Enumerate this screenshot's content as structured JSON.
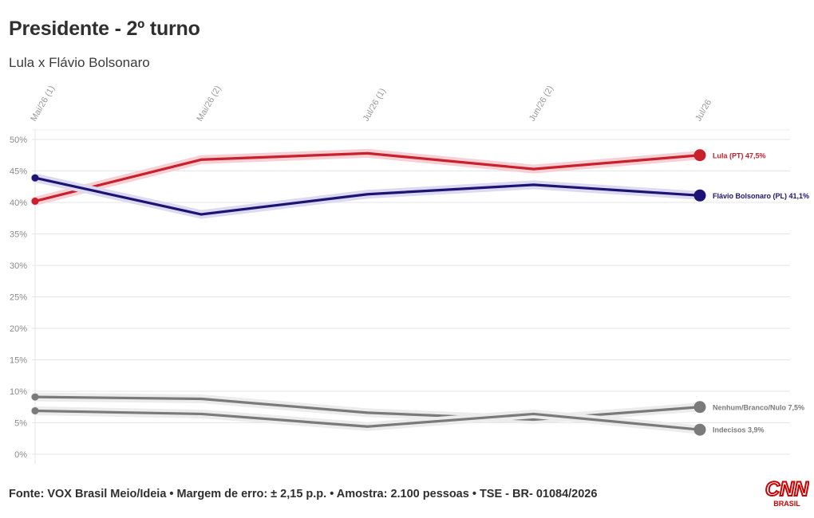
{
  "title": "Presidente - 2º turno",
  "subtitle": "Lula x Flávio Bolsonaro",
  "footer": "Fonte: VOX Brasil Meio/Ideia • Margem de erro: ± 2,15 p.p. • Amostra: 2.100 pessoas • TSE - BR- 01084/2026",
  "logo": {
    "top": "CNN",
    "bottom": "BRASIL",
    "color": "#cc0000"
  },
  "chart_data": {
    "type": "line",
    "x": [
      "Mai/26 (1)",
      "Mai/26 (2)",
      "Jul/26 (1)",
      "Jun/26 (2)",
      "Jul/26"
    ],
    "ylim": [
      0,
      50
    ],
    "yticks": [
      0,
      5,
      10,
      15,
      20,
      25,
      30,
      35,
      40,
      45,
      50
    ],
    "ytick_labels": [
      "0%",
      "5%",
      "10%",
      "15%",
      "20%",
      "25%",
      "30%",
      "35%",
      "40%",
      "45%",
      "50%"
    ],
    "grid": true,
    "series": [
      {
        "name": "Lula (PT)",
        "label": "Lula (PT) 47,5%",
        "color": "#c8202c",
        "halo": "#f6d0d4",
        "values": [
          40.2,
          46.8,
          47.8,
          45.3,
          47.5
        ]
      },
      {
        "name": "Flávio Bolsonaro (PL)",
        "label": "Flávio Bolsonaro (PL) 41,1%",
        "color": "#1c1472",
        "halo": "#dcdaf0",
        "values": [
          43.9,
          38.1,
          41.3,
          42.8,
          41.1
        ]
      },
      {
        "name": "Nenhum/Branco/Nulo",
        "label": "Nenhum/Branco/Nulo 7,5%",
        "color": "#7a7a7a",
        "halo": "#ececec",
        "values": [
          9.1,
          8.8,
          6.6,
          5.5,
          7.5
        ]
      },
      {
        "name": "Indecisos",
        "label": "Indecisos 3,9%",
        "color": "#7a7a7a",
        "halo": "#ececec",
        "values": [
          6.9,
          6.4,
          4.4,
          6.4,
          3.9
        ]
      }
    ]
  }
}
